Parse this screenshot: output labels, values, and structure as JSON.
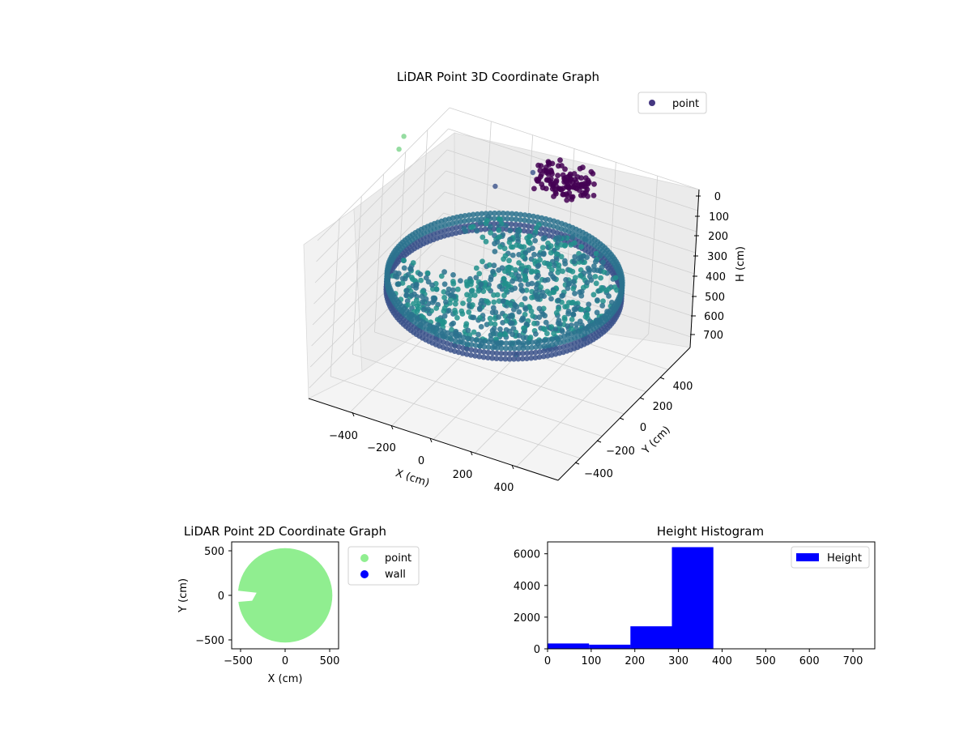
{
  "chart_data": [
    {
      "type": "scatter3d",
      "title": "LiDAR Point 3D Coordinate Graph",
      "xlabel": "X (cm)",
      "ylabel": "Y (cm)",
      "zlabel": "H (cm)",
      "xticks": [
        "−400",
        "−200",
        "0",
        "200",
        "400"
      ],
      "yticks": [
        "−400",
        "−200",
        "0",
        "200",
        "400"
      ],
      "zticks": [
        "0",
        "100",
        "200",
        "300",
        "400",
        "500",
        "600",
        "700"
      ],
      "xlim": [
        -600,
        600
      ],
      "ylim": [
        -600,
        600
      ],
      "zlim": [
        0,
        750
      ],
      "z_inverted": true,
      "grid": true,
      "legend": {
        "placement": "top-right",
        "entries": [
          {
            "label": "point",
            "color": "#453781"
          }
        ]
      },
      "colormap": "viridis",
      "shape": {
        "ring_radius": 500,
        "ring_height_range": [
          300,
          380
        ],
        "floor_height": 380,
        "dark_cluster_height": 0,
        "note_colors": [
          "#440154",
          "#3b528b",
          "#2c728e",
          "#21918c"
        ]
      }
    },
    {
      "type": "scatter",
      "title": "LiDAR Point 2D Coordinate Graph",
      "xlabel": "X (cm)",
      "ylabel": "Y (cm)",
      "xticks": [
        "−500",
        "0",
        "500"
      ],
      "yticks": [
        "−500",
        "0",
        "500"
      ],
      "xlim": [
        -600,
        600
      ],
      "ylim": [
        -600,
        600
      ],
      "legend": {
        "placement": "outside-right",
        "entries": [
          {
            "label": "point",
            "color": "#90ee90"
          },
          {
            "label": "wall",
            "color": "#0000ff"
          }
        ]
      },
      "region": {
        "shape": "disc",
        "radius": 530,
        "color": "#90ee90"
      }
    },
    {
      "type": "bar",
      "title": "Height Histogram",
      "xticks": [
        "0",
        "100",
        "200",
        "300",
        "400",
        "500",
        "600",
        "700"
      ],
      "yticks": [
        "0",
        "2000",
        "4000",
        "6000"
      ],
      "xlim": [
        0,
        750
      ],
      "ylim": [
        0,
        6750
      ],
      "legend": {
        "placement": "top-right",
        "entries": [
          {
            "label": "Height",
            "color": "#0000ff"
          }
        ]
      },
      "bins": [
        {
          "x0": 0,
          "x1": 95,
          "value": 340
        },
        {
          "x0": 95,
          "x1": 190,
          "value": 260
        },
        {
          "x0": 190,
          "x1": 285,
          "value": 1420
        },
        {
          "x0": 285,
          "x1": 380,
          "value": 6420
        }
      ],
      "bar_color": "#0000ff"
    }
  ]
}
